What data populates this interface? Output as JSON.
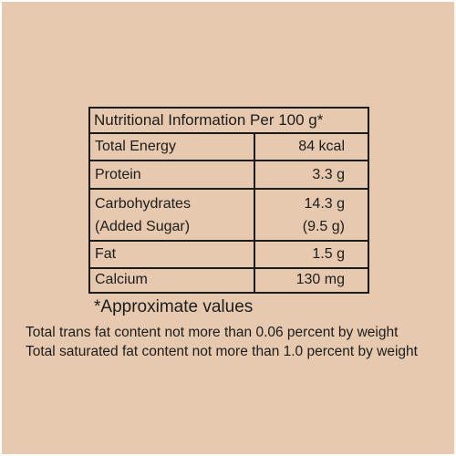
{
  "nutrition_table": {
    "title": "Nutritional Information Per 100 g*",
    "rows": [
      {
        "label": "Total Energy",
        "value": "84 kcal"
      },
      {
        "label": "Protein",
        "value": "3.3 g"
      },
      {
        "label": "Carbohydrates",
        "value": "14.3 g",
        "sub_label": "(Added Sugar)",
        "sub_value": "(9.5 g)"
      },
      {
        "label": "Fat",
        "value": "1.5 g"
      },
      {
        "label": "Calcium",
        "value": "130 mg"
      }
    ]
  },
  "footnote": "*Approximate values",
  "disclaimers": [
    "Total trans fat content not more than 0.06 percent by weight",
    "Total saturated fat content not more than 1.0 percent by weight"
  ],
  "colors": {
    "background": "#e6c9ae",
    "text": "#1c1c1c",
    "page_border": "#ffffff"
  }
}
